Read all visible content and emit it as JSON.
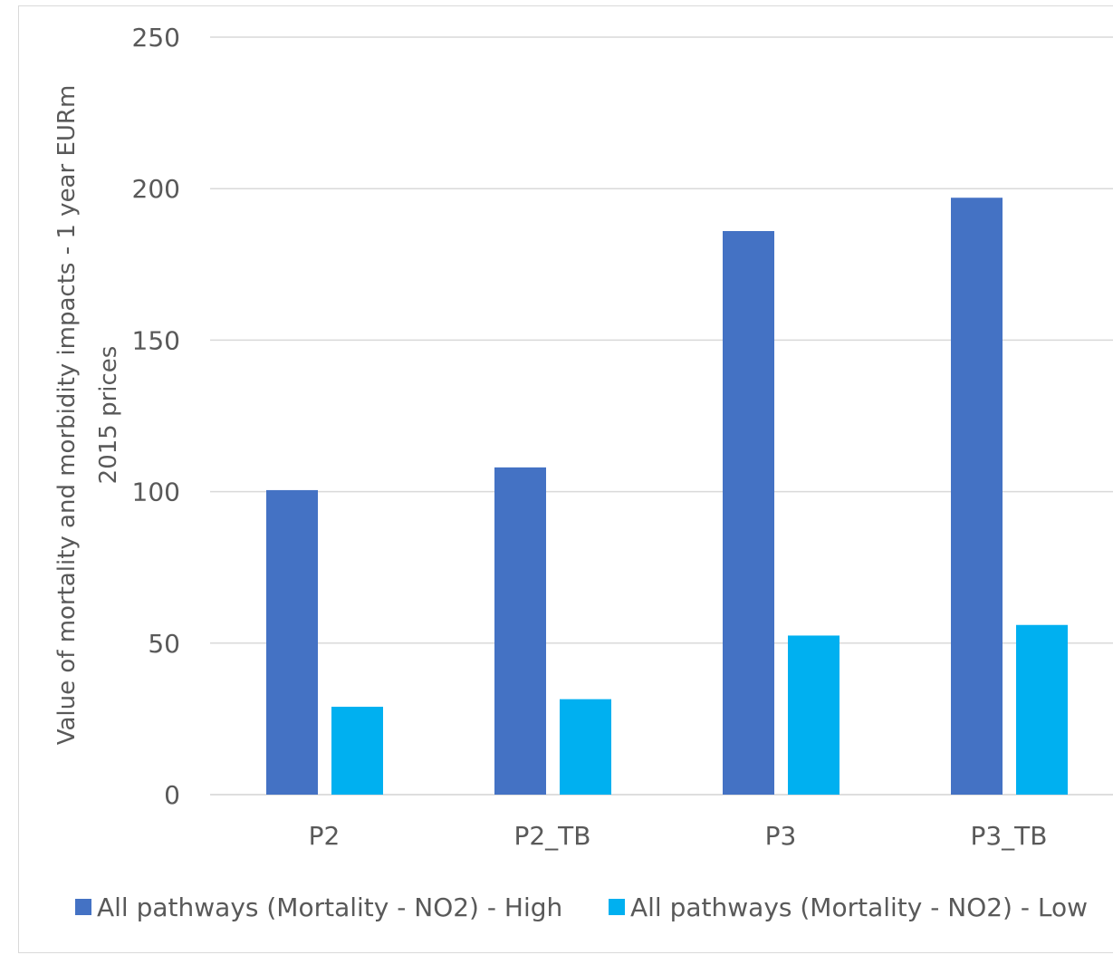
{
  "chart_data": {
    "type": "bar",
    "categories": [
      "P2",
      "P2_TB",
      "P3",
      "P3_TB"
    ],
    "series": [
      {
        "name": "All pathways (Mortality - NO2) - High",
        "values": [
          100.5,
          108,
          186,
          197
        ],
        "color": "#4472C4"
      },
      {
        "name": "All pathways (Mortality - NO2) - Low",
        "values": [
          29,
          31.5,
          52.5,
          56
        ],
        "color": "#00B0F0"
      }
    ],
    "ylabel_line1": "Value of mortality and morbidity impacts - 1 year EURm",
    "ylabel_line2": "2015 prices",
    "ylim": [
      0,
      250
    ],
    "yticks": [
      "0",
      "50",
      "100",
      "150",
      "200",
      "250"
    ],
    "ytick_values": [
      0,
      50,
      100,
      150,
      200,
      250
    ],
    "grid": true,
    "legend_position": "bottom",
    "gridline_color": "#d9d9d9"
  }
}
